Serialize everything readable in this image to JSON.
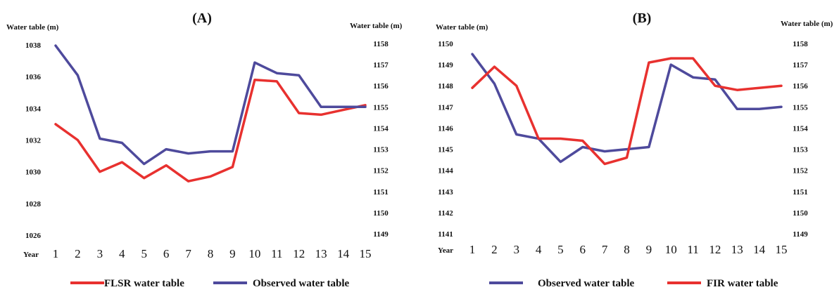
{
  "chart_data": [
    {
      "type": "line",
      "title": "(A)",
      "ylabel_left": "Water table (m)",
      "ylabel_right": "Water table (m)",
      "xlabel": "Year",
      "x": [
        1,
        2,
        3,
        4,
        5,
        6,
        7,
        8,
        9,
        10,
        11,
        12,
        13,
        14,
        15
      ],
      "left_axis": {
        "ylim": [
          1026,
          1038
        ],
        "ticks": [
          1026,
          1028,
          1030,
          1032,
          1034,
          1036,
          1038
        ]
      },
      "right_axis": {
        "ylim": [
          1149,
          1158
        ],
        "ticks": [
          1149,
          1150,
          1151,
          1152,
          1153,
          1154,
          1155,
          1156,
          1157,
          1158
        ]
      },
      "series": [
        {
          "name": "FLSR water table",
          "color": "#e8312f",
          "axis": "left",
          "values": [
            1033.0,
            1032.0,
            1030.0,
            1030.6,
            1029.6,
            1030.4,
            1029.4,
            1029.7,
            1030.3,
            1035.8,
            1035.7,
            1033.7,
            1033.6,
            1033.9,
            1034.2
          ]
        },
        {
          "name": "Observed water table",
          "color": "#4e4a9c",
          "axis": "right",
          "values": [
            1157.9,
            1156.5,
            1153.5,
            1153.3,
            1152.3,
            1153.0,
            1152.8,
            1152.9,
            1152.9,
            1157.1,
            1156.6,
            1156.5,
            1155.0,
            1155.0,
            1155.0
          ]
        }
      ],
      "legend_order": [
        "FLSR water table",
        "Observed water table"
      ],
      "grid": false,
      "legend": "bottom"
    },
    {
      "type": "line",
      "title": "(B)",
      "ylabel_left": "Water table (m)",
      "ylabel_right": "Water table (m)",
      "xlabel": "Year",
      "x": [
        1,
        2,
        3,
        4,
        5,
        6,
        7,
        8,
        9,
        10,
        11,
        12,
        13,
        14,
        15
      ],
      "left_axis": {
        "ylim": [
          1141,
          1150
        ],
        "ticks": [
          1141,
          1142,
          1143,
          1144,
          1145,
          1146,
          1147,
          1148,
          1149,
          1150
        ]
      },
      "right_axis": {
        "ylim": [
          1149,
          1158
        ],
        "ticks": [
          1149,
          1150,
          1151,
          1152,
          1153,
          1154,
          1155,
          1156,
          1157,
          1158
        ]
      },
      "series": [
        {
          "name": "Observed water table",
          "color": "#4e4a9c",
          "axis": "left",
          "values": [
            1149.5,
            1148.1,
            1145.7,
            1145.5,
            1144.4,
            1145.1,
            1144.9,
            1145.0,
            1145.1,
            1149.0,
            1148.4,
            1148.3,
            1146.9,
            1146.9,
            1147.0
          ]
        },
        {
          "name": "FIR water table",
          "color": "#e8312f",
          "axis": "right",
          "values": [
            1155.9,
            1156.9,
            1156.0,
            1153.5,
            1153.5,
            1153.4,
            1152.3,
            1152.6,
            1157.1,
            1157.3,
            1157.3,
            1156.0,
            1155.8,
            1155.9,
            1156.0
          ]
        }
      ],
      "legend_order": [
        "Observed water table",
        "FIR water table"
      ],
      "grid": false,
      "legend": "bottom"
    }
  ]
}
